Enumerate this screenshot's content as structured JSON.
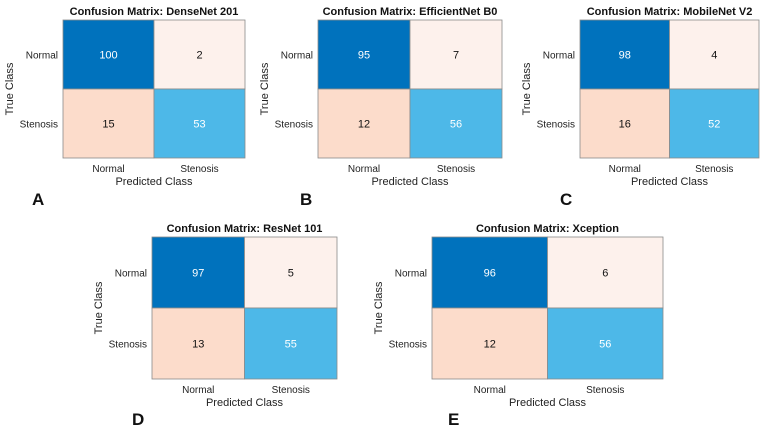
{
  "chart_data": [
    {
      "type": "heatmap",
      "panel": "A",
      "title": "Confusion Matrix: DenseNet 201",
      "xlabel": "Predicted Class",
      "ylabel": "True Class",
      "x_categories": [
        "Normal",
        "Stenosis"
      ],
      "y_categories": [
        "Normal",
        "Stenosis"
      ],
      "values": [
        [
          100,
          2
        ],
        [
          15,
          53
        ]
      ]
    },
    {
      "type": "heatmap",
      "panel": "B",
      "title": "Confusion Matrix: EfficientNet B0",
      "xlabel": "Predicted Class",
      "ylabel": "True Class",
      "x_categories": [
        "Normal",
        "Stenosis"
      ],
      "y_categories": [
        "Normal",
        "Stenosis"
      ],
      "values": [
        [
          95,
          7
        ],
        [
          12,
          56
        ]
      ]
    },
    {
      "type": "heatmap",
      "panel": "C",
      "title": "Confusion Matrix: MobileNet V2",
      "xlabel": "Predicted Class",
      "ylabel": "True Class",
      "x_categories": [
        "Normal",
        "Stenosis"
      ],
      "y_categories": [
        "Normal",
        "Stenosis"
      ],
      "values": [
        [
          98,
          4
        ],
        [
          16,
          52
        ]
      ]
    },
    {
      "type": "heatmap",
      "panel": "D",
      "title": "Confusion Matrix: ResNet 101",
      "xlabel": "Predicted Class",
      "ylabel": "True Class",
      "x_categories": [
        "Normal",
        "Stenosis"
      ],
      "y_categories": [
        "Normal",
        "Stenosis"
      ],
      "values": [
        [
          97,
          5
        ],
        [
          13,
          55
        ]
      ]
    },
    {
      "type": "heatmap",
      "panel": "E",
      "title": "Confusion Matrix: Xception",
      "xlabel": "Predicted Class",
      "ylabel": "True Class",
      "x_categories": [
        "Normal",
        "Stenosis"
      ],
      "y_categories": [
        "Normal",
        "Stenosis"
      ],
      "values": [
        [
          96,
          6
        ],
        [
          12,
          56
        ]
      ]
    }
  ],
  "colors": {
    "diagonal_high": "#0072bd",
    "diagonal_low": "#4db8e8",
    "offdiag_low": "#fdf1ec",
    "offdiag_high": "#fcdccb",
    "cell_border": "#8a8a8a"
  }
}
